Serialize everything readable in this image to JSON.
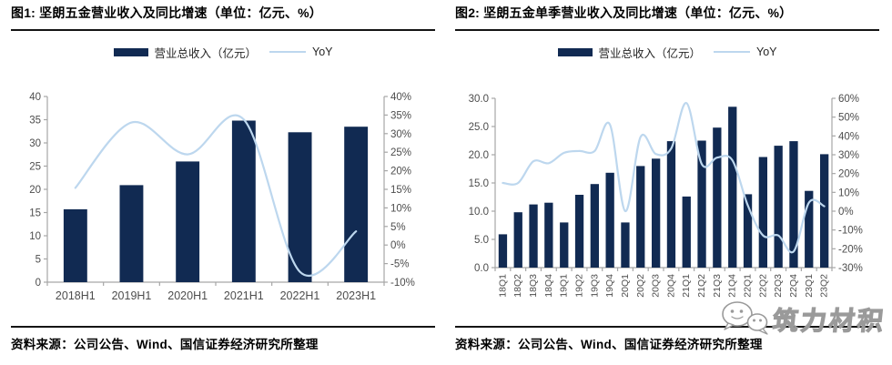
{
  "panels": [
    {
      "title": "图1: 坚朗五金营业收入及同比增速（单位：亿元、%）",
      "legend": {
        "bar_label": "营业总收入（亿元）",
        "line_label": "YoY"
      },
      "source": "资料来源：公司公告、Wind、国信证券经济研究所整理"
    },
    {
      "title": "图2: 坚朗五金单季营业收入及同比增速（单位：亿元、%）",
      "legend": {
        "bar_label": "营业总收入（亿元）",
        "line_label": "YoY"
      },
      "source": "资料来源：公司公告、Wind、国信证券经济研究所整理"
    }
  ],
  "watermark": {
    "icon": "wechat-icon",
    "text": "筑力材积"
  },
  "colors": {
    "bar": "#112a52",
    "line": "#bdd7ee",
    "axis": "#a6a6a6",
    "tick_text": "#4d4d4d",
    "watermark_stroke": "#9a9a9a"
  },
  "chart_data": [
    {
      "type": "bar",
      "title": "坚朗五金营业收入及同比增速",
      "categories": [
        "2018H1",
        "2019H1",
        "2020H1",
        "2021H1",
        "2022H1",
        "2023H1"
      ],
      "series": [
        {
          "name": "营业总收入（亿元）",
          "type": "bar",
          "axis": "left",
          "values": [
            15.7,
            20.9,
            26.0,
            34.8,
            32.3,
            33.5
          ]
        },
        {
          "name": "YoY",
          "type": "line",
          "axis": "right",
          "values": [
            15.4,
            33.0,
            24.4,
            33.8,
            -7.2,
            3.7
          ]
        }
      ],
      "left_axis": {
        "min": 0,
        "max": 40,
        "step": 5,
        "format": "int"
      },
      "right_axis": {
        "min": -10,
        "max": 40,
        "step": 5,
        "format": "pct"
      },
      "grid": false,
      "legend_position": "top"
    },
    {
      "type": "bar",
      "title": "坚朗五金单季营业收入及同比增速",
      "categories": [
        "18Q1",
        "18Q2",
        "18Q3",
        "18Q4",
        "19Q1",
        "19Q2",
        "19Q3",
        "19Q4",
        "20Q1",
        "20Q2",
        "20Q3",
        "20Q4",
        "21Q1",
        "21Q2",
        "21Q3",
        "21Q4",
        "22Q1",
        "22Q2",
        "22Q3",
        "22Q4",
        "23Q1",
        "23Q2"
      ],
      "series": [
        {
          "name": "营业总收入（亿元）",
          "type": "bar",
          "axis": "left",
          "values": [
            5.9,
            9.8,
            11.2,
            11.5,
            8.0,
            12.9,
            14.8,
            16.8,
            8.0,
            18.0,
            19.3,
            22.4,
            12.6,
            22.5,
            24.8,
            28.5,
            13.0,
            19.6,
            21.6,
            22.4,
            13.6,
            20.1
          ]
        },
        {
          "name": "YoY",
          "type": "line",
          "axis": "right",
          "values": [
            15,
            15,
            26.5,
            25.5,
            31,
            32,
            32,
            46,
            0,
            39.5,
            30.4,
            33.3,
            57.5,
            25,
            28.5,
            27,
            3.2,
            -12.9,
            -12.9,
            -21.4,
            4.6,
            2.6
          ]
        }
      ],
      "left_axis": {
        "min": 0,
        "max": 30,
        "step": 5,
        "format": "1dp"
      },
      "right_axis": {
        "min": -30,
        "max": 60,
        "step": 10,
        "format": "pct"
      },
      "grid": false,
      "legend_position": "top"
    }
  ]
}
